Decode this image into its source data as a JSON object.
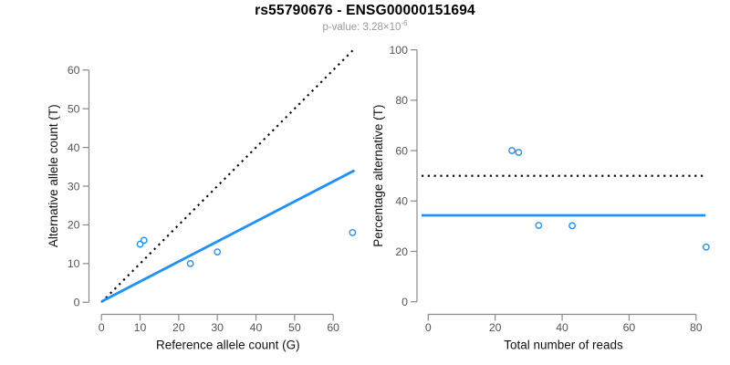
{
  "header": {
    "title": "rs55790676 - ENSG00000151694",
    "pvalue_base": "p-value: 3.28×10",
    "pvalue_exponent": "-6"
  },
  "colors": {
    "accent_blue": "#1E90FF",
    "dotted_black": "#000000",
    "axis_gray": "#8a8a8a",
    "tick_text_gray": "#555555",
    "label_text": "#111111",
    "subtitle_gray": "#999999",
    "background": "#ffffff"
  },
  "chart_data": [
    {
      "type": "scatter",
      "name": "allele-counts-plot",
      "xlabel": "Reference allele count (G)",
      "ylabel": "Alternative allele count (T)",
      "xticks": [
        0,
        10,
        20,
        30,
        40,
        50,
        60
      ],
      "yticks": [
        0,
        10,
        20,
        30,
        40,
        50,
        60
      ],
      "xlim": [
        0,
        65.5
      ],
      "ylim": [
        0,
        65.3
      ],
      "grid": false,
      "points": [
        [
          10,
          15
        ],
        [
          11,
          16
        ],
        [
          23,
          10
        ],
        [
          30,
          13
        ],
        [
          65,
          18
        ]
      ],
      "point_color": "#1E90FF",
      "lines": [
        {
          "name": "identity-line",
          "style": "dotted",
          "color": "#000000",
          "slope": 1,
          "intercept": 0
        },
        {
          "name": "fit-line",
          "style": "solid",
          "color": "#1E90FF",
          "slope": 0.517,
          "intercept": 0.2
        }
      ]
    },
    {
      "type": "scatter",
      "name": "percentage-alternative-plot",
      "xlabel": "Total number of reads",
      "ylabel": "Percentage alternative (T)",
      "xticks": [
        0,
        20,
        40,
        60,
        80
      ],
      "yticks": [
        0,
        20,
        40,
        60,
        80,
        100
      ],
      "xlim": [
        -2,
        82.8
      ],
      "ylim": [
        0,
        100
      ],
      "grid": false,
      "points": [
        [
          25,
          60
        ],
        [
          27,
          59.3
        ],
        [
          33,
          30.3
        ],
        [
          43,
          30.2
        ],
        [
          83,
          21.7
        ]
      ],
      "point_color": "#1E90FF",
      "lines": [
        {
          "name": "expected-50pct-line",
          "style": "dotted",
          "color": "#000000",
          "y": 50
        },
        {
          "name": "mean-line",
          "style": "solid",
          "color": "#1E90FF",
          "y": 34.3
        }
      ]
    }
  ]
}
